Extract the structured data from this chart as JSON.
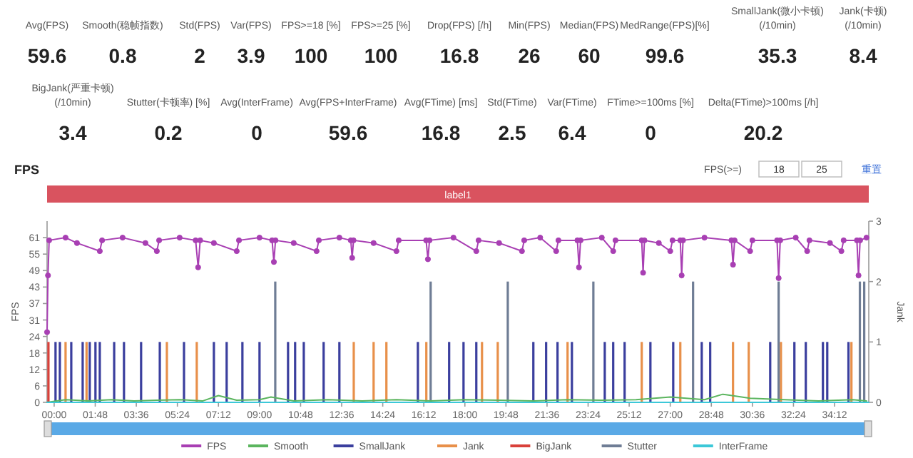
{
  "chart_data": [
    {
      "type": "other",
      "categories": [
        "Avg(FPS)",
        "Smooth(稳帧指数)",
        "Std(FPS)",
        "Var(FPS)",
        "FPS>=18 [%]",
        "FPS>=25 [%]",
        "Drop(FPS) [/h]",
        "Min(FPS)",
        "Median(FPS)",
        "MedRange(FPS)[%]",
        "SmallJank(微小卡顿)\n(/10min)",
        "Jank(卡顿)\n(/10min)",
        "BigJank(严重卡顿)\n(/10min)",
        "Stutter(卡顿率) [%]",
        "Avg(InterFrame)",
        "Avg(FPS+InterFrame)",
        "Avg(FTime) [ms]",
        "Std(FTime)",
        "Var(FTime)",
        "FTime>=100ms [%]",
        "Delta(FTime)>100ms [/h]"
      ],
      "values": [
        59.6,
        0.8,
        2,
        3.9,
        100,
        100,
        16.8,
        26,
        60,
        99.6,
        35.3,
        8.4,
        3.4,
        0.2,
        0,
        59.6,
        16.8,
        2.5,
        6.4,
        0,
        20.2
      ],
      "data_labels": true
    },
    {
      "type": "line",
      "title": "FPS",
      "ylabel": "FPS",
      "y2label": "Jank",
      "annotations": [
        "FPS(>=)",
        "18",
        "25",
        "重置",
        "label1"
      ],
      "xlim": [
        -0.31,
        35.7
      ],
      "xticks": [
        {
          "value": 0,
          "label": "00:00"
        },
        {
          "value": 1.8,
          "label": "01:48"
        },
        {
          "value": 3.6,
          "label": "03:36"
        },
        {
          "value": 5.4,
          "label": "05:24"
        },
        {
          "value": 7.2,
          "label": "07:12"
        },
        {
          "value": 9,
          "label": "09:00"
        },
        {
          "value": 10.8,
          "label": "10:48"
        },
        {
          "value": 12.6,
          "label": "12:36"
        },
        {
          "value": 14.4,
          "label": "14:24"
        },
        {
          "value": 16.2,
          "label": "16:12"
        },
        {
          "value": 18,
          "label": "18:00"
        },
        {
          "value": 19.8,
          "label": "19:48"
        },
        {
          "value": 21.6,
          "label": "21:36"
        },
        {
          "value": 23.4,
          "label": "23:24"
        },
        {
          "value": 25.2,
          "label": "25:12"
        },
        {
          "value": 27,
          "label": "27:00"
        },
        {
          "value": 28.8,
          "label": "28:48"
        },
        {
          "value": 30.6,
          "label": "30:36"
        },
        {
          "value": 32.4,
          "label": "32:24"
        },
        {
          "value": 34.2,
          "label": "34:12"
        }
      ],
      "ylim": [
        0,
        67.1
      ],
      "yticks": [
        0,
        {
          "value": 6.1,
          "label": "6"
        },
        {
          "value": 12.2,
          "label": "12"
        },
        {
          "value": 18.3,
          "label": "18"
        },
        {
          "value": 24.4,
          "label": "24"
        },
        {
          "value": 30.5,
          "label": "31"
        },
        {
          "value": 36.6,
          "label": "37"
        },
        {
          "value": 42.7,
          "label": "43"
        },
        {
          "value": 48.8,
          "label": "49"
        },
        {
          "value": 54.9,
          "label": "55"
        },
        61
      ],
      "y2lim": [
        0,
        3
      ],
      "y2ticks": [
        0,
        1,
        2,
        3
      ],
      "legend": "bottom",
      "series": [
        {
          "name": "FPS",
          "color": "#a83fb3",
          "marker": "circle",
          "x": [
            -0.31,
            -0.27,
            -0.22,
            0.5,
            1.0,
            2.0,
            2.1,
            3.0,
            4.0,
            4.5,
            4.6,
            5.5,
            6.2,
            6.31,
            6.4,
            7.0,
            8.0,
            8.1,
            9.0,
            9.55,
            9.63,
            9.7,
            10.5,
            11.5,
            11.6,
            12.5,
            13.0,
            13.06,
            13.12,
            14.0,
            15.0,
            15.1,
            16.3,
            16.38,
            16.45,
            17.5,
            18.5,
            18.6,
            19.5,
            20.5,
            20.6,
            21.3,
            22.0,
            22.1,
            22.93,
            23.0,
            23.07,
            24.0,
            24.5,
            24.6,
            25.75,
            25.81,
            25.87,
            26.5,
            27.0,
            27.1,
            27.44,
            27.5,
            27.56,
            28.5,
            29.68,
            29.75,
            29.82,
            30.5,
            30.6,
            31.68,
            31.75,
            31.82,
            32.5,
            33.0,
            33.1,
            34.0,
            34.5,
            34.6,
            35.18,
            35.25,
            35.32,
            35.6
          ],
          "values": [
            26,
            47,
            60,
            61,
            59,
            56,
            60,
            61,
            59,
            56,
            60,
            61,
            60,
            50,
            60,
            59,
            56,
            60,
            61,
            60,
            52,
            60,
            59,
            56,
            60,
            61,
            60,
            53.5,
            60,
            59,
            56,
            60,
            60,
            53,
            60,
            61,
            56,
            60,
            59,
            56,
            60,
            61,
            56,
            60,
            60,
            50,
            60,
            61,
            56,
            60,
            60,
            48,
            60,
            59,
            56,
            60,
            60,
            47,
            60,
            61,
            60,
            51,
            60,
            56,
            60,
            60,
            46,
            60,
            61,
            56,
            60,
            59,
            56,
            60,
            60,
            47,
            60,
            61
          ]
        },
        {
          "name": "Smooth",
          "color": "#5bb55e",
          "x": [
            -0.31,
            0.5,
            1.5,
            2.5,
            3.5,
            4.5,
            5.5,
            6.5,
            7.2,
            8,
            9,
            9.5,
            10.5,
            12,
            13.5,
            15,
            16.5,
            18,
            19.5,
            21,
            22.5,
            24,
            25.5,
            27,
            28.5,
            29.3,
            30.5,
            32,
            33.5,
            35,
            35.6
          ],
          "values": [
            0,
            1,
            0.5,
            1,
            0.5,
            0.8,
            1,
            0.5,
            2.5,
            0.8,
            1,
            2,
            0.5,
            1,
            0.5,
            1,
            0.5,
            1,
            0.8,
            0.5,
            1,
            0.8,
            1,
            2,
            1,
            3,
            1.5,
            1,
            0.5,
            1,
            0.5
          ]
        },
        {
          "name": "SmallJank",
          "type": "bar",
          "axis": "y2",
          "color": "#3b3f9e",
          "x": [
            0.06,
            0.25,
            0.75,
            1.25,
            1.56,
            1.81,
            2.0,
            2.63,
            3.06,
            3.81,
            4.63,
            5.69,
            7.0,
            7.56,
            8.25,
            9.0,
            10.25,
            10.56,
            10.94,
            11.81,
            12.5,
            15.94,
            17.31,
            17.94,
            18.5,
            21.0,
            21.56,
            22.06,
            22.69,
            24.13,
            24.5,
            25.0,
            26.13,
            27.13,
            28.38,
            28.75,
            31.38,
            32.44,
            32.94,
            33.69,
            33.88,
            34.81
          ],
          "values": [
            1,
            1,
            1,
            1,
            1,
            1,
            1,
            1,
            1,
            1,
            1,
            1,
            1,
            1,
            1,
            1,
            1,
            1,
            1,
            1,
            1,
            1,
            1,
            1,
            1,
            1,
            1,
            1,
            1,
            1,
            1,
            1,
            1,
            1,
            1,
            1,
            1,
            1,
            1,
            1,
            1,
            1
          ]
        },
        {
          "name": "Jank",
          "type": "bar",
          "axis": "y2",
          "color": "#e8904a",
          "x": [
            0.5,
            1.42,
            4.94,
            6.25,
            13.13,
            14.0,
            14.56,
            16.31,
            18.75,
            19.44,
            22.5,
            25.75,
            27.44,
            29.75,
            30.44,
            31.85,
            34.94
          ],
          "values": [
            1,
            1,
            1,
            1,
            1,
            1,
            1,
            1,
            1,
            1,
            1,
            1,
            1,
            1,
            1,
            1,
            1
          ]
        },
        {
          "name": "BigJank",
          "type": "bar",
          "axis": "y2",
          "color": "#d9413a",
          "x": [
            -0.25
          ],
          "values": [
            1
          ]
        },
        {
          "name": "Stutter",
          "type": "bar",
          "axis": "y2",
          "color": "#6f7d95",
          "x": [
            9.69,
            16.5,
            19.88,
            23.63,
            28.0,
            31.75,
            35.31,
            35.5
          ],
          "values": [
            2,
            2,
            2,
            2,
            2,
            2,
            2,
            2
          ]
        },
        {
          "name": "InterFrame",
          "color": "#3cc8d8",
          "x": [
            -0.31,
            35.7
          ],
          "values": [
            0,
            0
          ]
        }
      ]
    }
  ]
}
